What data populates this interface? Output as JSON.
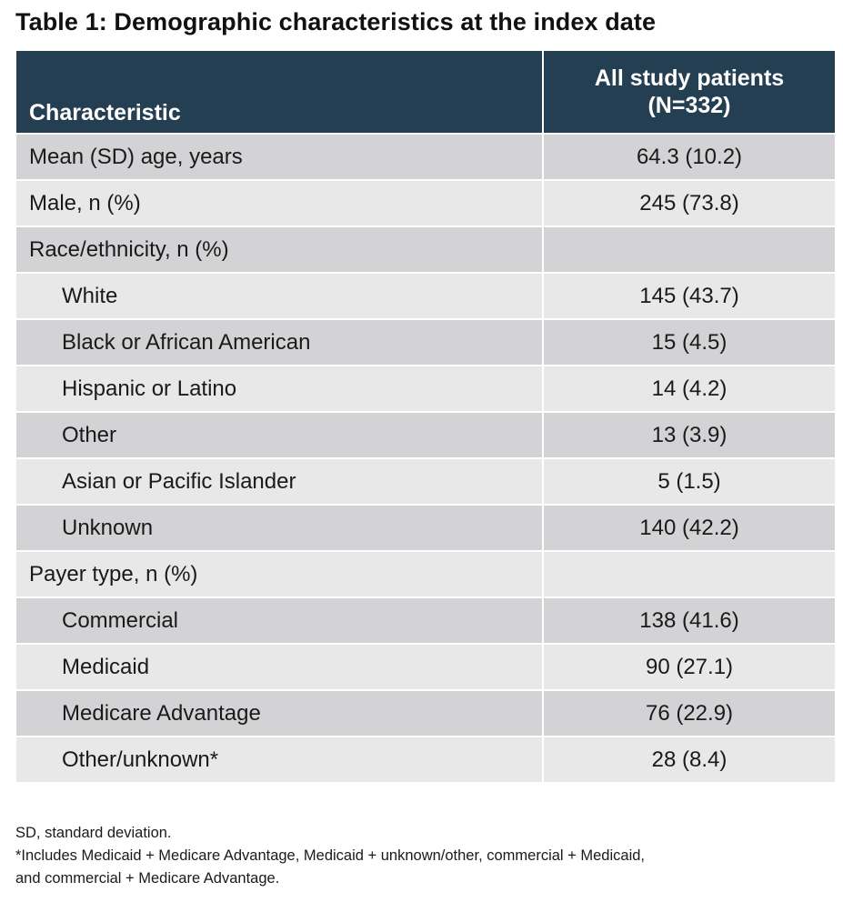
{
  "title": "Table 1: Demographic characteristics at the index date",
  "header": {
    "characteristic": "Characteristic",
    "column_line1": "All study patients",
    "column_line2": "(N=332)"
  },
  "rows": [
    {
      "label": "Mean (SD) age, years",
      "value": "64.3 (10.2)",
      "indent": false
    },
    {
      "label": "Male, n (%)",
      "value": "245 (73.8)",
      "indent": false
    },
    {
      "label": "Race/ethnicity, n (%)",
      "value": "",
      "indent": false
    },
    {
      "label": "White",
      "value": "145 (43.7)",
      "indent": true
    },
    {
      "label": "Black or African American",
      "value": "15 (4.5)",
      "indent": true
    },
    {
      "label": "Hispanic or Latino",
      "value": "14 (4.2)",
      "indent": true
    },
    {
      "label": "Other",
      "value": "13 (3.9)",
      "indent": true
    },
    {
      "label": "Asian or Pacific Islander",
      "value": "5 (1.5)",
      "indent": true
    },
    {
      "label": "Unknown",
      "value": "140 (42.2)",
      "indent": true
    },
    {
      "label": "Payer type, n (%)",
      "value": "",
      "indent": false
    },
    {
      "label": "Commercial",
      "value": "138 (41.6)",
      "indent": true
    },
    {
      "label": "Medicaid",
      "value": "90 (27.1)",
      "indent": true
    },
    {
      "label": "Medicare Advantage",
      "value": "76 (22.9)",
      "indent": true
    },
    {
      "label": "Other/unknown*",
      "value": "28 (8.4)",
      "indent": true
    }
  ],
  "footnotes": {
    "line1": "SD, standard deviation.",
    "line2": "*Includes Medicaid + Medicare Advantage, Medicaid + unknown/other, commercial + Medicaid,",
    "line3": "and commercial + Medicare Advantage."
  },
  "colors": {
    "header_bg": "#243e52",
    "row_dark": "#d3d3d5",
    "row_light": "#e8e8e9"
  }
}
